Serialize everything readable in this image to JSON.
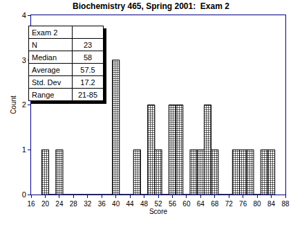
{
  "chart_data": {
    "type": "histogram",
    "title": "Biochemistry 465, Spring 2001:  Exam 2",
    "x_label": "Score",
    "y_label": "Count",
    "bins": [
      19,
      21,
      23,
      25,
      27,
      29,
      31,
      33,
      35,
      37,
      39,
      41,
      43,
      45,
      47,
      49,
      51,
      53,
      55,
      57,
      59,
      61,
      63,
      65,
      67,
      69,
      71,
      73,
      75,
      77,
      79,
      81,
      83,
      85
    ],
    "values": [
      1,
      0,
      1,
      0,
      0,
      0,
      0,
      0,
      0,
      0,
      3,
      0,
      0,
      1,
      0,
      2,
      1,
      0,
      2,
      2,
      0,
      1,
      1,
      2,
      1,
      0,
      0,
      1,
      1,
      1,
      0,
      1,
      1
    ],
    "color": "#000000",
    "xlim": [
      16,
      88
    ],
    "xticks": [
      16,
      20,
      24,
      28,
      32,
      36,
      40,
      44,
      48,
      52,
      56,
      60,
      64,
      68,
      72,
      76,
      80,
      84,
      88
    ],
    "ylim": [
      0,
      4
    ],
    "yticks": [
      0,
      1,
      2,
      3,
      4
    ],
    "grid": false,
    "stats_table": {
      "header": "Exam 2",
      "rows": [
        [
          "N",
          23
        ],
        [
          "Median",
          58
        ],
        [
          "Average",
          57.5
        ],
        [
          "Std. Dev",
          17.2
        ],
        [
          "Range",
          "21-85"
        ]
      ]
    }
  }
}
